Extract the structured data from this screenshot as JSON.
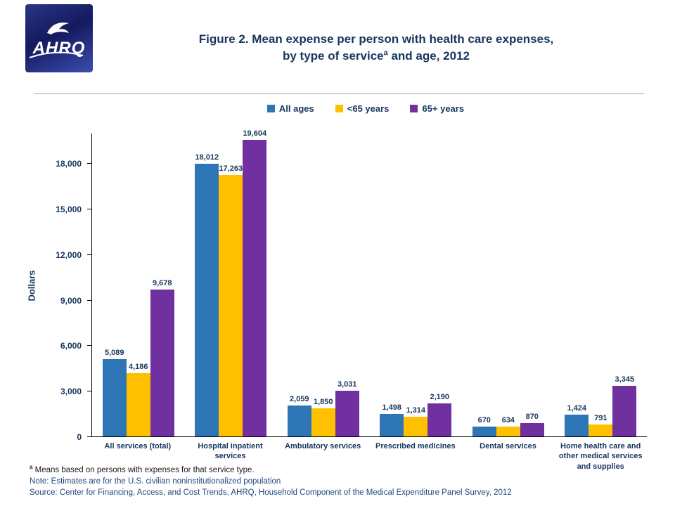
{
  "header": {
    "logo_text": "AHRQ",
    "title_line1": "Figure 2. Mean expense per person with health care expenses,",
    "title_line2_pre": "by type of service",
    "title_line2_sup": "a",
    "title_line2_post": " and age, 2012"
  },
  "chart_data": {
    "type": "bar",
    "title": "Figure 2. Mean expense per person with health care expenses, by type of service and age, 2012",
    "xlabel": "",
    "ylabel": "Dollars",
    "ylim": [
      0,
      20000
    ],
    "yticks": [
      0,
      3000,
      6000,
      9000,
      12000,
      15000,
      18000
    ],
    "grid": false,
    "legend_position": "top",
    "categories": [
      "All services (total)",
      "Hospital inpatient services",
      "Ambulatory services",
      "Prescribed medicines",
      "Dental services",
      "Home health care and other medical services and supplies"
    ],
    "series": [
      {
        "name": "All ages",
        "color": "#2E75B6",
        "values": [
          5089,
          18012,
          2059,
          1498,
          670,
          1424
        ]
      },
      {
        "name": "<65 years",
        "color": "#FFC000",
        "values": [
          4186,
          17263,
          1850,
          1314,
          634,
          791
        ]
      },
      {
        "name": "65+ years",
        "color": "#7030A0",
        "values": [
          9678,
          19604,
          3031,
          2190,
          870,
          3345
        ]
      }
    ]
  },
  "footnotes": {
    "marker": "a",
    "footnote_text": " Means based on persons with expenses for that service type.",
    "note": "Note: Estimates are for the U.S. civilian noninstitutionalized population",
    "source": "Source: Center for Financing, Access, and Cost Trends, AHRQ, Household Component of the Medical Expenditure Panel Survey, 2012"
  },
  "colors": {
    "title_text": "#17365D",
    "note_text": "#1F497D",
    "series_blue": "#2E75B6",
    "series_gold": "#FFC000",
    "series_purple": "#7030A0"
  }
}
